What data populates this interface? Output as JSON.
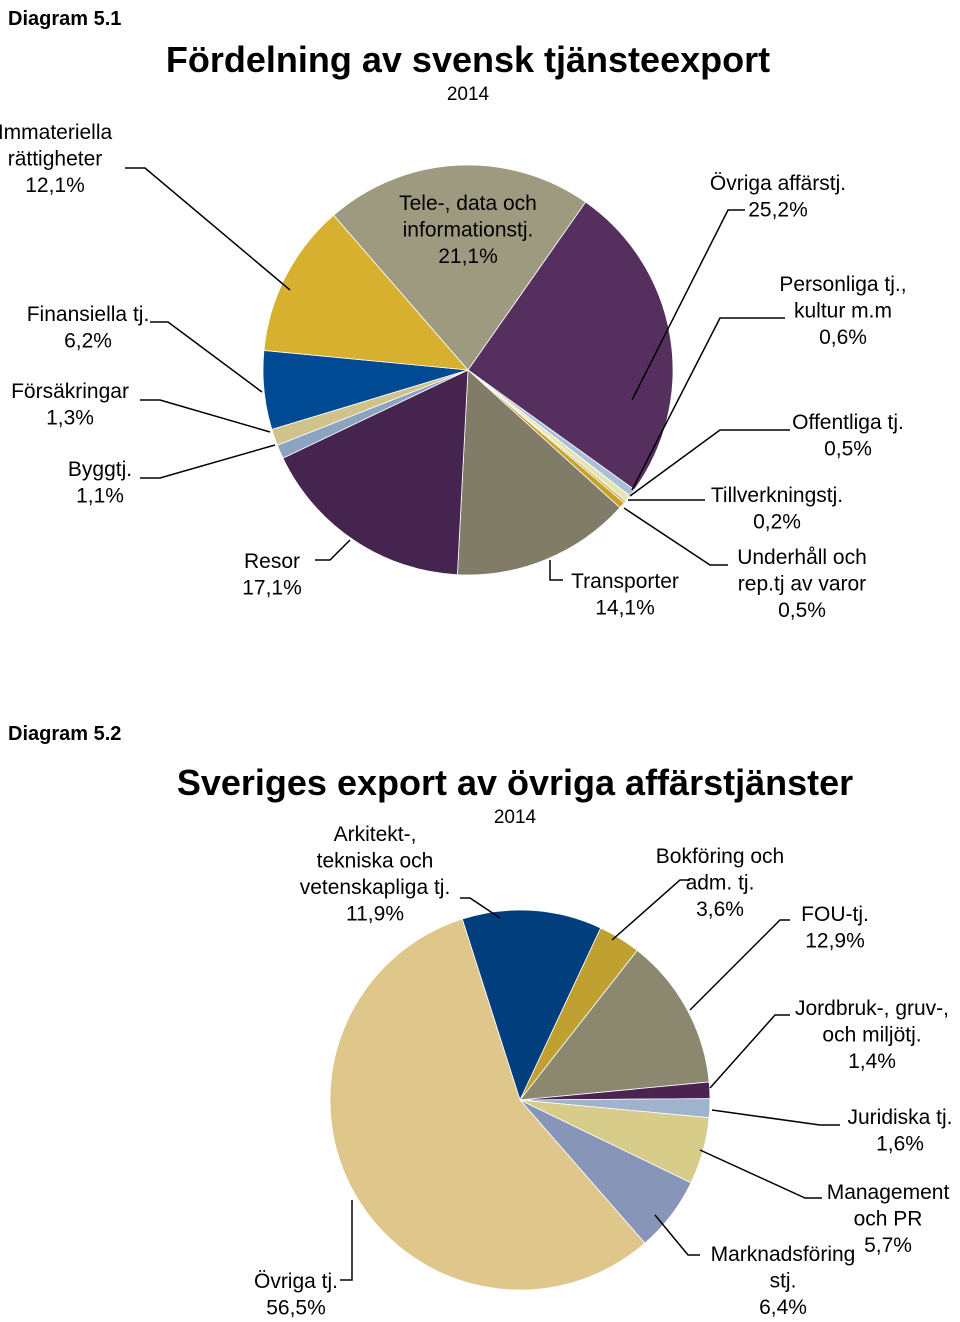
{
  "chart_data": [
    {
      "type": "pie",
      "figure_label": "Diagram 5.1",
      "title": "Fördelning av svensk tjänsteexport",
      "subtitle": "2014",
      "categories": [
        "Övriga affärstj.",
        "Personliga tj.,\nkultur m.m",
        "Offentliga tj.",
        "Tillverkningstj.",
        "Underhåll och\nrep.tj av varor",
        "Transporter",
        "Resor",
        "Byggtj.",
        "Försäkringar",
        "Finansiella tj.",
        "Immateriella\nrättigheter",
        "Tele-, data och\ninformationstj."
      ],
      "values": [
        25.2,
        0.6,
        0.5,
        0.2,
        0.5,
        14.1,
        17.1,
        1.1,
        1.3,
        6.2,
        12.1,
        21.1
      ],
      "value_labels": [
        "25,2%",
        "0,6%",
        "0,5%",
        "0,2%",
        "0,5%",
        "14,1%",
        "17,1%",
        "1,1%",
        "1,3%",
        "6,2%",
        "12,1%",
        "21,1%"
      ],
      "colors": [
        "#552f5e",
        "#a9c0d8",
        "#e8e4b0",
        "#c8b86e",
        "#c9a22a",
        "#807c68",
        "#45254f",
        "#8ca3c2",
        "#cfc38a",
        "#004a94",
        "#d8b030",
        "#9e9a80"
      ]
    },
    {
      "type": "pie",
      "figure_label": "Diagram 5.2",
      "title": "Sveriges export av övriga affärstjänster",
      "subtitle": "2014",
      "categories": [
        "Arkitekt-,\ntekniska och\nvetenskapliga tj.",
        "Bokföring och\nadm. tj.",
        "FOU-tj.",
        "Jordbruk-, gruv-,\noch miljötj.",
        "Juridiska tj.",
        "Management\noch PR",
        "Marknadsföring\nstj.",
        "Övriga tj."
      ],
      "values": [
        11.9,
        3.6,
        12.9,
        1.4,
        1.6,
        5.7,
        6.4,
        56.5
      ],
      "value_labels": [
        "11,9%",
        "3,6%",
        "12,9%",
        "1,4%",
        "1,6%",
        "5,7%",
        "6,4%",
        "56,5%"
      ],
      "colors": [
        "#003e7e",
        "#c0a030",
        "#8c8870",
        "#4a2350",
        "#9fb3cd",
        "#d8cc8a",
        "#8796b8",
        "#dfc68a"
      ]
    }
  ]
}
